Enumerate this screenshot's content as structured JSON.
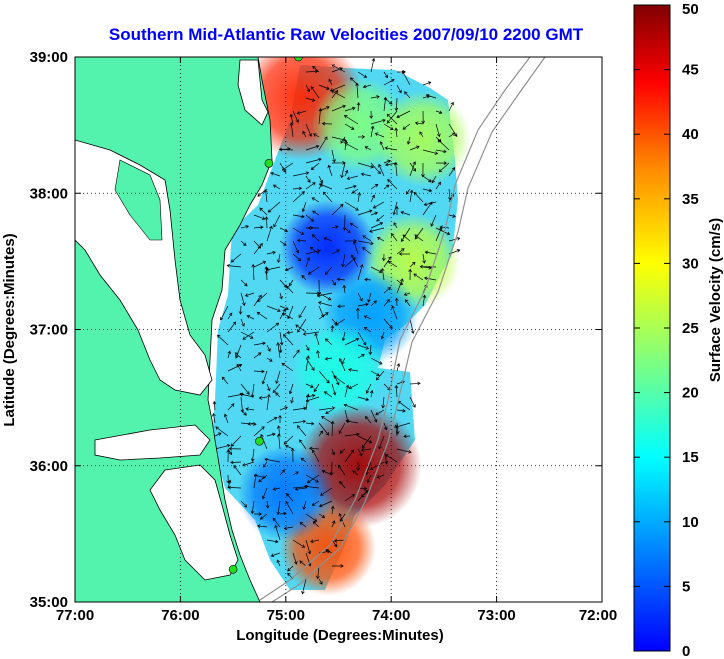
{
  "chart_data": {
    "type": "heatmap",
    "title": "Southern Mid-Atlantic Raw Velocities 2007/09/10 2200 GMT",
    "xlabel": "Longitude (Degrees:Minutes)",
    "ylabel": "Latitude (Degrees:Minutes)",
    "xlim": [
      -77,
      -72
    ],
    "ylim": [
      35,
      39
    ],
    "x_ticks": [
      {
        "value": -77,
        "label": "77:00"
      },
      {
        "value": -76,
        "label": "76:00"
      },
      {
        "value": -75,
        "label": "75:00"
      },
      {
        "value": -74,
        "label": "74:00"
      },
      {
        "value": -73,
        "label": "73:00"
      },
      {
        "value": -72,
        "label": "72:00"
      }
    ],
    "y_ticks": [
      {
        "value": 35,
        "label": "35:00"
      },
      {
        "value": 36,
        "label": "36:00"
      },
      {
        "value": 37,
        "label": "37:00"
      },
      {
        "value": 38,
        "label": "38:00"
      },
      {
        "value": 39,
        "label": "39:00"
      }
    ],
    "grid": true,
    "colorbar": {
      "label": "Surface Velocity (cm/s)",
      "range": [
        0,
        50
      ],
      "ticks": [
        0,
        5,
        10,
        15,
        20,
        25,
        30,
        35,
        40,
        45,
        50
      ],
      "colormap": "jet",
      "placement": "right"
    },
    "regions": [
      {
        "name": "",
        "lon": -74.85,
        "lat": 38.7,
        "value": 42
      },
      {
        "name": "",
        "lon": -74.3,
        "lat": 38.5,
        "value": 25
      },
      {
        "name": "",
        "lon": -73.7,
        "lat": 38.4,
        "value": 27
      },
      {
        "name": "",
        "lon": -74.6,
        "lat": 37.6,
        "value": 8
      },
      {
        "name": "",
        "lon": -73.8,
        "lat": 37.5,
        "value": 28
      },
      {
        "name": "",
        "lon": -74.2,
        "lat": 37.1,
        "value": 14
      },
      {
        "name": "",
        "lon": -74.5,
        "lat": 36.7,
        "value": 20
      },
      {
        "name": "",
        "lon": -74.3,
        "lat": 36.0,
        "value": 48
      },
      {
        "name": "",
        "lon": -74.6,
        "lat": 35.4,
        "value": 40
      },
      {
        "name": "",
        "lon": -75.0,
        "lat": 35.8,
        "value": 12
      }
    ],
    "sites": [
      {
        "lon": -74.88,
        "lat": 39.0
      },
      {
        "lon": -75.16,
        "lat": 38.22
      },
      {
        "lon": -75.25,
        "lat": 36.18
      },
      {
        "lon": -75.5,
        "lat": 35.24
      }
    ]
  },
  "colors": {
    "land": "#53f3ad",
    "coast": "#000000",
    "depth_contour": "#909090",
    "title": "#0000ff",
    "site_marker": "#22dd22"
  }
}
